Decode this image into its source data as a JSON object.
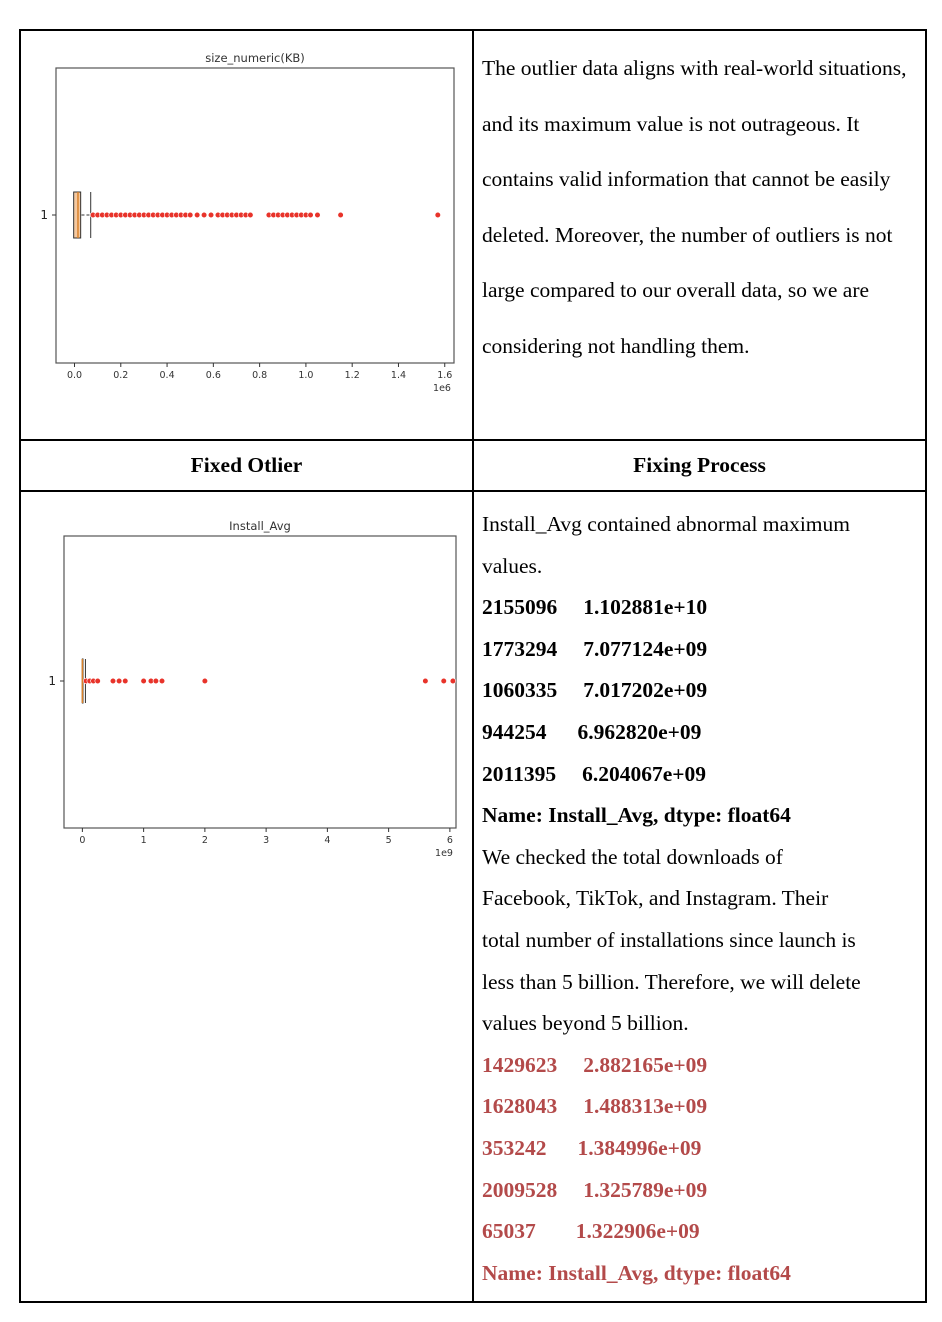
{
  "row1": {
    "paragraph": "The outlier data aligns with real-world situations, and its maximum value is not outrageous. It contains valid information that cannot be easily deleted. Moreover, the number of outliers is not large compared to our overall data, so we are considering not handling them."
  },
  "header": {
    "left": "Fixed Otlier",
    "right": "Fixing Process"
  },
  "process": {
    "intro_lines": [
      "Install_Avg contained abnormal maximum",
      "values."
    ],
    "max_rows": [
      {
        "id": "2155096",
        "value": "1.102881e+10"
      },
      {
        "id": "1773294",
        "value": "7.077124e+09"
      },
      {
        "id": "1060335",
        "value": "7.017202e+09"
      },
      {
        "id": "944254",
        "value": "6.962820e+09"
      },
      {
        "id": "2011395",
        "value": "6.204067e+09"
      }
    ],
    "max_footer": "Name: Install_Avg, dtype: float64",
    "explanation_lines": [
      "We checked the total downloads of",
      "Facebook, TikTok, and Instagram. Their",
      "total number of installations since launch is",
      "less than 5 billion. Therefore, we will delete",
      "values beyond 5 billion."
    ],
    "fixed_rows": [
      {
        "id": "1429623",
        "value": "2.882165e+09"
      },
      {
        "id": "1628043",
        "value": "1.488313e+09"
      },
      {
        "id": "353242",
        "value": "1.384996e+09"
      },
      {
        "id": "2009528",
        "value": "1.325789e+09"
      },
      {
        "id": "65037",
        "value": "1.322906e+09"
      }
    ],
    "fixed_footer": "Name: Install_Avg, dtype: float64"
  },
  "colors": {
    "outlier": "#e8332a",
    "box": "#f5c9a0",
    "median": "#d9822b",
    "fixed_text": "#b34a4a"
  },
  "chart_data": [
    {
      "type": "boxplot",
      "orientation": "horizontal",
      "title": "size_numeric(KB)",
      "ytick_labels": [
        "1"
      ],
      "xticks": [
        "0.0",
        "0.2",
        "0.4",
        "0.6",
        "0.8",
        "1.0",
        "1.2",
        "1.4",
        "1.6"
      ],
      "x_offset_text": "1e6",
      "xlim": [
        -0.08,
        1.64
      ],
      "box": {
        "whisker_low": 0.0,
        "q1": 0.005,
        "median": 0.015,
        "q3": 0.03,
        "whisker_high": 0.07
      },
      "outliers": [
        0.08,
        0.1,
        0.12,
        0.14,
        0.16,
        0.18,
        0.2,
        0.22,
        0.24,
        0.26,
        0.28,
        0.3,
        0.32,
        0.34,
        0.36,
        0.38,
        0.4,
        0.42,
        0.44,
        0.46,
        0.48,
        0.5,
        0.53,
        0.56,
        0.59,
        0.62,
        0.64,
        0.66,
        0.68,
        0.7,
        0.72,
        0.74,
        0.76,
        0.84,
        0.86,
        0.88,
        0.9,
        0.92,
        0.94,
        0.96,
        0.98,
        1.0,
        1.02,
        1.05,
        1.15,
        1.57
      ]
    },
    {
      "type": "boxplot",
      "orientation": "horizontal",
      "title": "Install_Avg",
      "ytick_labels": [
        "1"
      ],
      "xticks": [
        "0",
        "1",
        "2",
        "3",
        "4",
        "5",
        "6"
      ],
      "x_offset_text": "1e9",
      "xlim": [
        -0.3,
        6.1
      ],
      "box": {
        "whisker_low": 0.0,
        "q1": 0.0,
        "median": 0.0,
        "q3": 0.01,
        "whisker_high": 0.05
      },
      "outliers": [
        0.06,
        0.12,
        0.18,
        0.25,
        0.5,
        0.6,
        0.7,
        1.0,
        1.12,
        1.2,
        1.3,
        2.0,
        5.6,
        5.9,
        6.05
      ]
    }
  ]
}
